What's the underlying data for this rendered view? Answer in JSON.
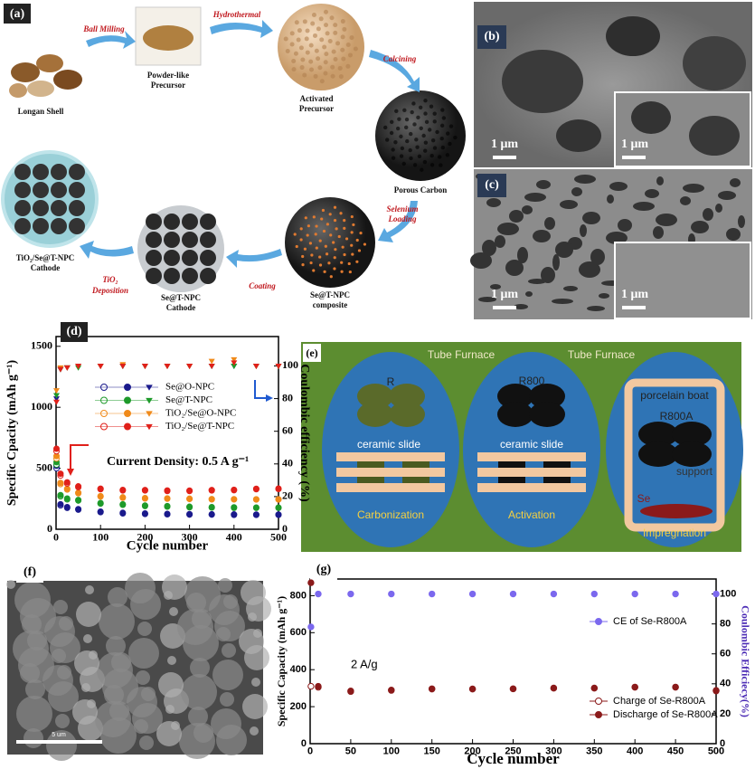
{
  "panels": {
    "a": {
      "label": "(a)",
      "steps": [
        [
          "Ball Milling"
        ],
        [
          "Hydrothermal"
        ],
        [
          "Calcining"
        ],
        [
          "Selenium",
          "Loading"
        ],
        [
          "Coating"
        ],
        [
          "TiO₂",
          "Deposition"
        ]
      ],
      "items": [
        [
          "Longan Shell"
        ],
        [
          "Powder-like",
          "Precursor"
        ],
        [
          "Activated",
          "Precursor"
        ],
        [
          "Porous Carbon"
        ],
        [
          "Se@T-NPC",
          "composite"
        ],
        [
          "Se@T-NPC",
          "Cathode"
        ],
        [
          "TiO₂/Se@T-NPC",
          "Cathode"
        ]
      ]
    },
    "b": {
      "label": "(b)",
      "scale": [
        "1 μm",
        "1 μm"
      ]
    },
    "c": {
      "label": "(c)",
      "scale": [
        "1 μm",
        "1 μm"
      ]
    },
    "e": {
      "label": "(e)",
      "furnace": [
        "Tube Furnace",
        "Tube Furnace"
      ],
      "samples": [
        "R",
        "R800",
        "R800A"
      ],
      "boat": "porcelain boat",
      "slides": [
        "ceramic slide",
        "ceramic slide"
      ],
      "se": "Se",
      "support": "support",
      "steps": [
        "Carbonization",
        "Activation",
        "Impregnation"
      ]
    },
    "f": {
      "label": "(f)",
      "scale": "5 um"
    }
  },
  "chart_data": [
    {
      "type": "line",
      "panel": "(d)",
      "xlabel": "Cycle number",
      "ylabel": "Specific Cpacity (mAh g⁻¹)",
      "y2label": "Coulombic efficiency (%)",
      "annotation": "Current Density: 0.5 A g⁻¹",
      "x": [
        1,
        10,
        25,
        50,
        100,
        150,
        200,
        250,
        300,
        350,
        400,
        450,
        500
      ],
      "xlim": [
        0,
        500
      ],
      "xticks": [
        0,
        100,
        200,
        300,
        400,
        500
      ],
      "ylim": [
        0,
        1580
      ],
      "yticks": [
        0,
        500,
        1000,
        1500
      ],
      "y2lim": [
        0,
        118
      ],
      "y2ticks": [
        0,
        20,
        40,
        60,
        80,
        100
      ],
      "series": [
        {
          "name": "Se@O-NPC",
          "color": "#1a1a8c",
          "charge": [
            500,
            195,
            175,
            160,
            140,
            130,
            125,
            122,
            120,
            120,
            118,
            118,
            118
          ],
          "discharge": [
            520,
            205,
            182,
            165,
            145,
            135,
            130,
            126,
            124,
            123,
            122,
            121,
            121
          ],
          "ce": [
            80,
            98,
            99,
            100,
            100,
            100,
            100,
            100,
            100,
            100,
            100,
            100,
            100
          ]
        },
        {
          "name": "Se@T-NPC",
          "color": "#1e9a2a",
          "charge": [
            530,
            270,
            245,
            235,
            210,
            200,
            190,
            185,
            180,
            178,
            175,
            175,
            175
          ],
          "discharge": [
            550,
            280,
            252,
            240,
            215,
            205,
            195,
            190,
            185,
            182,
            180,
            178,
            178
          ],
          "ce": [
            82,
            98,
            99,
            99,
            100,
            100,
            100,
            100,
            100,
            100,
            100,
            100,
            100
          ]
        },
        {
          "name": "TiO₂/Se@O-NPC",
          "color": "#f08a1a",
          "charge": [
            580,
            370,
            325,
            295,
            268,
            258,
            252,
            250,
            248,
            245,
            245,
            244,
            244
          ],
          "discharge": [
            600,
            380,
            332,
            300,
            272,
            262,
            256,
            253,
            251,
            248,
            247,
            246,
            246
          ],
          "ce": [
            85,
            99,
            99,
            100,
            100,
            101,
            100,
            100,
            100,
            103,
            104,
            100,
            100
          ]
        },
        {
          "name": "TiO₂/Se@T-NPC",
          "color": "#e0201a",
          "charge": [
            640,
            440,
            375,
            345,
            328,
            318,
            318,
            313,
            313,
            318,
            320,
            328,
            330
          ],
          "discharge": [
            660,
            455,
            385,
            352,
            333,
            323,
            322,
            318,
            317,
            322,
            324,
            332,
            334
          ],
          "ce": [
            78,
            98,
            99,
            100,
            100,
            100,
            100,
            100,
            100,
            100,
            102,
            100,
            100
          ]
        }
      ]
    },
    {
      "type": "line",
      "panel": "(g)",
      "xlabel": "Cycle number",
      "ylabel": "Specific Capacity (mAh g⁻¹)",
      "y2label": "Coulombic Efficiecy(%)",
      "y2_color": "#4b2bb5",
      "annotation": "2 A/g",
      "x": [
        1,
        10,
        50,
        100,
        150,
        200,
        250,
        300,
        350,
        400,
        450,
        500
      ],
      "xlim": [
        0,
        500
      ],
      "xticks": [
        0,
        50,
        100,
        150,
        200,
        250,
        300,
        350,
        400,
        450,
        500
      ],
      "ylim": [
        0,
        890
      ],
      "yticks": [
        0,
        200,
        400,
        600,
        800
      ],
      "y2lim": [
        0,
        110
      ],
      "y2ticks": [
        0,
        20,
        40,
        60,
        80,
        100
      ],
      "series": [
        {
          "name": "CE of Se-R800A",
          "color": "#7b68ee",
          "marker": "filled",
          "axis": "y2",
          "values": [
            78,
            100,
            100,
            100,
            100,
            100,
            100,
            100,
            100,
            100,
            100,
            100
          ]
        },
        {
          "name": "Charge of Se-R800A",
          "color": "#8b1a1a",
          "marker": "open",
          "values": [
            310,
            305,
            282,
            288,
            295,
            295,
            296,
            300,
            300,
            305,
            305,
            285
          ]
        },
        {
          "name": "Discharge of Se-R800A",
          "color": "#8b1a1a",
          "marker": "filled",
          "values": [
            870,
            310,
            285,
            290,
            297,
            296,
            297,
            301,
            301,
            306,
            306,
            288
          ]
        }
      ]
    }
  ]
}
